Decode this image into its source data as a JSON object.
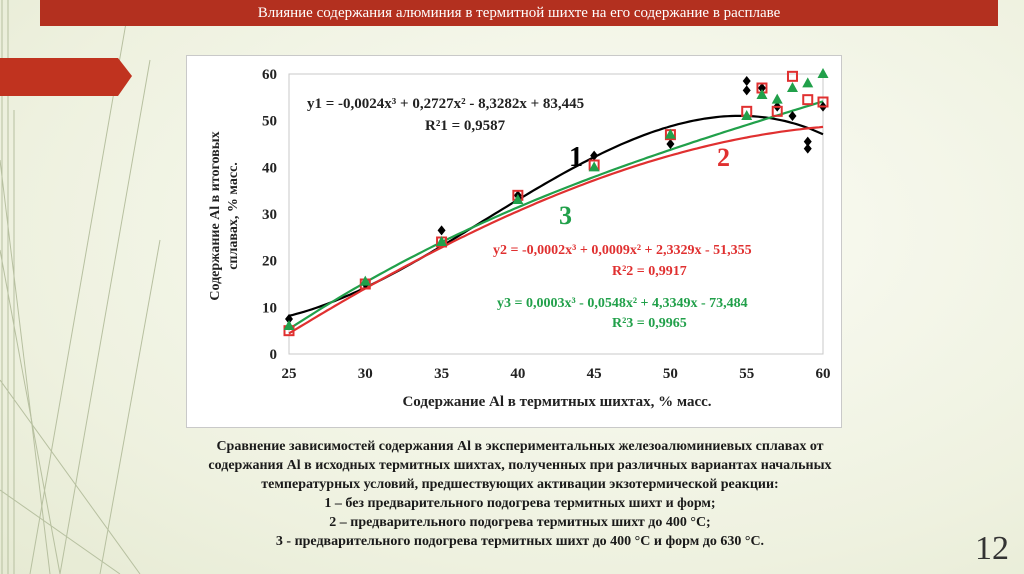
{
  "slide": {
    "title": "Влияние содержания алюминия в термитной шихте на его содержание в расплаве",
    "page_number": "12",
    "colors": {
      "title_bar": "#b3301f",
      "accent_arrow": "#c0331f",
      "background": "#f1f4e6"
    }
  },
  "chart_data": {
    "type": "scatter",
    "xlabel": "Содержание Al в термитных шихтах, % масс.",
    "ylabel": "Содержание Al в итоговых сплавах, % масс.",
    "ylabel_lines": [
      "Содержание Al в итоговых",
      "сплавах, % масс."
    ],
    "xlim": [
      25,
      60
    ],
    "ylim": [
      0,
      60
    ],
    "x_ticks": [
      "25",
      "30",
      "35",
      "40",
      "45",
      "50",
      "55",
      "60"
    ],
    "y_ticks": [
      "0",
      "10",
      "20",
      "30",
      "40",
      "50",
      "60"
    ],
    "grid": false,
    "series": [
      {
        "name": "1",
        "color": "#000000",
        "marker": "diamond",
        "points": [
          [
            25,
            7.5
          ],
          [
            30,
            15
          ],
          [
            35,
            26.5
          ],
          [
            40,
            34
          ],
          [
            45,
            42.5
          ],
          [
            50,
            45
          ],
          [
            55,
            56.5
          ],
          [
            55,
            58.5
          ],
          [
            56,
            57
          ],
          [
            57,
            53
          ],
          [
            58,
            51
          ],
          [
            59,
            45.5
          ],
          [
            59,
            44
          ],
          [
            60,
            53
          ]
        ],
        "fit": {
          "a": -0.0024,
          "b": 0.2727,
          "c": -8.3282,
          "d": 83.445
        },
        "equation": "y1 = -0,0024x³ + 0,2727x² - 8,3282x + 83,445",
        "r2": "R²1 = 0,9587"
      },
      {
        "name": "2",
        "color": "#e03030",
        "marker": "square",
        "points": [
          [
            25,
            5
          ],
          [
            30,
            15
          ],
          [
            35,
            24
          ],
          [
            40,
            34
          ],
          [
            45,
            40.5
          ],
          [
            50,
            47
          ],
          [
            55,
            52
          ],
          [
            56,
            57
          ],
          [
            57,
            52
          ],
          [
            58,
            59.5
          ],
          [
            59,
            54.5
          ],
          [
            60,
            54
          ]
        ],
        "fit": {
          "a": -0.0002,
          "b": 0.0009,
          "c": 2.3329,
          "d": -51.355
        },
        "equation": "y2 = -0,0002x³ + 0,0009x² + 2,3329x - 51,355",
        "r2": "R²2 = 0,9917"
      },
      {
        "name": "3",
        "color": "#21a04a",
        "marker": "triangle",
        "points": [
          [
            25,
            6
          ],
          [
            30,
            15.5
          ],
          [
            35,
            24
          ],
          [
            40,
            33
          ],
          [
            45,
            40
          ],
          [
            50,
            47
          ],
          [
            55,
            51
          ],
          [
            56,
            55.5
          ],
          [
            57,
            54.5
          ],
          [
            58,
            57
          ],
          [
            59,
            58
          ],
          [
            60,
            60
          ]
        ],
        "fit": {
          "a": 0.0003,
          "b": -0.0548,
          "c": 4.3349,
          "d": -73.484
        },
        "equation": "y3 = 0,0003x³ - 0,0548x² + 4,3349x - 73,484",
        "r2": "R²3 = 0,9965"
      }
    ]
  },
  "caption": {
    "lines": [
      "Сравнение зависимостей содержания Al в экспериментальных железоалюминиевых сплавах от",
      "содержания Al в исходных термитных шихтах, полученных при различных вариантах начальных",
      "температурных условий, предшествующих активации экзотермической реакции:",
      "1 – без предварительного подогрева термитных шихт и форм;",
      "2 – предварительного подогрева термитных шихт до 400 °C;",
      "3 -  предварительного подогрева термитных шихт до 400 °C и форм до 630 °C."
    ]
  }
}
